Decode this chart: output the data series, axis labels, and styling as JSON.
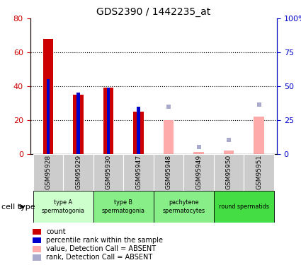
{
  "title": "GDS2390 / 1442235_at",
  "samples": [
    "GSM95928",
    "GSM95929",
    "GSM95930",
    "GSM95947",
    "GSM95948",
    "GSM95949",
    "GSM95950",
    "GSM95951"
  ],
  "red_bars": [
    68,
    35,
    39,
    25,
    null,
    null,
    null,
    null
  ],
  "blue_bars": [
    44,
    36,
    39,
    28,
    null,
    null,
    null,
    null
  ],
  "pink_bars": [
    null,
    null,
    null,
    null,
    20,
    1,
    2,
    22
  ],
  "lightblue_bars_left": [
    null,
    null,
    null,
    null,
    28,
    4,
    8,
    29
  ],
  "ylim_left": [
    0,
    80
  ],
  "ylim_right": [
    0,
    100
  ],
  "yticks_left": [
    0,
    20,
    40,
    60,
    80
  ],
  "yticks_right": [
    0,
    25,
    50,
    75,
    100
  ],
  "yticklabels_right": [
    "0",
    "25",
    "50",
    "75",
    "100%"
  ],
  "left_axis_color": "#cc0000",
  "right_axis_color": "#0000cc",
  "group_colors": [
    "#ccffcc",
    "#88ee88",
    "#88ee88",
    "#44dd44"
  ],
  "group_labels": [
    "type A\nspermatogonia",
    "type B\nspermatogonia",
    "pachytene\nspermatocytes",
    "round spermatids"
  ],
  "group_ranges": [
    [
      0,
      1
    ],
    [
      2,
      3
    ],
    [
      4,
      5
    ],
    [
      6,
      7
    ]
  ],
  "legend_colors": [
    "#cc0000",
    "#0000cc",
    "#ffaaaa",
    "#aaaacc"
  ],
  "legend_labels": [
    "count",
    "percentile rank within the sample",
    "value, Detection Call = ABSENT",
    "rank, Detection Call = ABSENT"
  ],
  "cell_type_label": "cell type",
  "bar_width": 0.35,
  "blue_bar_width": 0.1,
  "grid_dotted_vals": [
    20,
    40,
    60
  ],
  "plot_bg": "#ffffff",
  "sample_area_bg": "#cccccc"
}
